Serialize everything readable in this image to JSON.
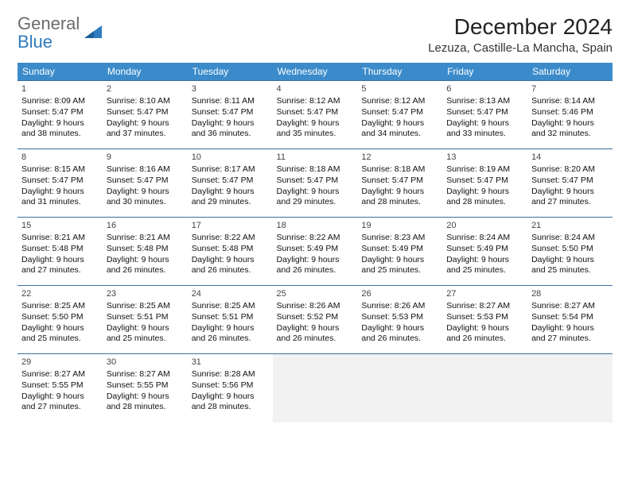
{
  "logo": {
    "line1": "General",
    "line2": "Blue"
  },
  "title": "December 2024",
  "location": "Lezuza, Castille-La Mancha, Spain",
  "colors": {
    "header_bg": "#3b8bca",
    "header_fg": "#ffffff",
    "cell_border": "#3b6fa0",
    "empty_bg": "#f2f2f2",
    "logo_gray": "#6b6b6b",
    "logo_blue": "#2f7bbf"
  },
  "day_headers": [
    "Sunday",
    "Monday",
    "Tuesday",
    "Wednesday",
    "Thursday",
    "Friday",
    "Saturday"
  ],
  "weeks": [
    [
      {
        "n": "1",
        "sr": "8:09 AM",
        "ss": "5:47 PM",
        "dl": "9 hours and 38 minutes."
      },
      {
        "n": "2",
        "sr": "8:10 AM",
        "ss": "5:47 PM",
        "dl": "9 hours and 37 minutes."
      },
      {
        "n": "3",
        "sr": "8:11 AM",
        "ss": "5:47 PM",
        "dl": "9 hours and 36 minutes."
      },
      {
        "n": "4",
        "sr": "8:12 AM",
        "ss": "5:47 PM",
        "dl": "9 hours and 35 minutes."
      },
      {
        "n": "5",
        "sr": "8:12 AM",
        "ss": "5:47 PM",
        "dl": "9 hours and 34 minutes."
      },
      {
        "n": "6",
        "sr": "8:13 AM",
        "ss": "5:47 PM",
        "dl": "9 hours and 33 minutes."
      },
      {
        "n": "7",
        "sr": "8:14 AM",
        "ss": "5:46 PM",
        "dl": "9 hours and 32 minutes."
      }
    ],
    [
      {
        "n": "8",
        "sr": "8:15 AM",
        "ss": "5:47 PM",
        "dl": "9 hours and 31 minutes."
      },
      {
        "n": "9",
        "sr": "8:16 AM",
        "ss": "5:47 PM",
        "dl": "9 hours and 30 minutes."
      },
      {
        "n": "10",
        "sr": "8:17 AM",
        "ss": "5:47 PM",
        "dl": "9 hours and 29 minutes."
      },
      {
        "n": "11",
        "sr": "8:18 AM",
        "ss": "5:47 PM",
        "dl": "9 hours and 29 minutes."
      },
      {
        "n": "12",
        "sr": "8:18 AM",
        "ss": "5:47 PM",
        "dl": "9 hours and 28 minutes."
      },
      {
        "n": "13",
        "sr": "8:19 AM",
        "ss": "5:47 PM",
        "dl": "9 hours and 28 minutes."
      },
      {
        "n": "14",
        "sr": "8:20 AM",
        "ss": "5:47 PM",
        "dl": "9 hours and 27 minutes."
      }
    ],
    [
      {
        "n": "15",
        "sr": "8:21 AM",
        "ss": "5:48 PM",
        "dl": "9 hours and 27 minutes."
      },
      {
        "n": "16",
        "sr": "8:21 AM",
        "ss": "5:48 PM",
        "dl": "9 hours and 26 minutes."
      },
      {
        "n": "17",
        "sr": "8:22 AM",
        "ss": "5:48 PM",
        "dl": "9 hours and 26 minutes."
      },
      {
        "n": "18",
        "sr": "8:22 AM",
        "ss": "5:49 PM",
        "dl": "9 hours and 26 minutes."
      },
      {
        "n": "19",
        "sr": "8:23 AM",
        "ss": "5:49 PM",
        "dl": "9 hours and 25 minutes."
      },
      {
        "n": "20",
        "sr": "8:24 AM",
        "ss": "5:49 PM",
        "dl": "9 hours and 25 minutes."
      },
      {
        "n": "21",
        "sr": "8:24 AM",
        "ss": "5:50 PM",
        "dl": "9 hours and 25 minutes."
      }
    ],
    [
      {
        "n": "22",
        "sr": "8:25 AM",
        "ss": "5:50 PM",
        "dl": "9 hours and 25 minutes."
      },
      {
        "n": "23",
        "sr": "8:25 AM",
        "ss": "5:51 PM",
        "dl": "9 hours and 25 minutes."
      },
      {
        "n": "24",
        "sr": "8:25 AM",
        "ss": "5:51 PM",
        "dl": "9 hours and 26 minutes."
      },
      {
        "n": "25",
        "sr": "8:26 AM",
        "ss": "5:52 PM",
        "dl": "9 hours and 26 minutes."
      },
      {
        "n": "26",
        "sr": "8:26 AM",
        "ss": "5:53 PM",
        "dl": "9 hours and 26 minutes."
      },
      {
        "n": "27",
        "sr": "8:27 AM",
        "ss": "5:53 PM",
        "dl": "9 hours and 26 minutes."
      },
      {
        "n": "28",
        "sr": "8:27 AM",
        "ss": "5:54 PM",
        "dl": "9 hours and 27 minutes."
      }
    ],
    [
      {
        "n": "29",
        "sr": "8:27 AM",
        "ss": "5:55 PM",
        "dl": "9 hours and 27 minutes."
      },
      {
        "n": "30",
        "sr": "8:27 AM",
        "ss": "5:55 PM",
        "dl": "9 hours and 28 minutes."
      },
      {
        "n": "31",
        "sr": "8:28 AM",
        "ss": "5:56 PM",
        "dl": "9 hours and 28 minutes."
      },
      null,
      null,
      null,
      null
    ]
  ],
  "labels": {
    "sunrise": "Sunrise:",
    "sunset": "Sunset:",
    "daylight": "Daylight:"
  }
}
